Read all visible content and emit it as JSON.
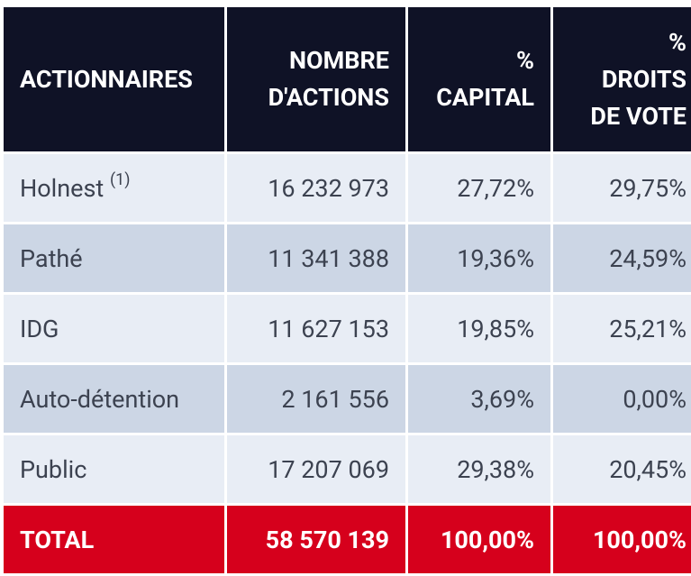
{
  "table": {
    "headers": [
      [
        "ACTIONNAIRES"
      ],
      [
        "NOMBRE",
        "D'ACTIONS"
      ],
      [
        "%",
        "CAPITAL"
      ],
      [
        "%",
        "DROITS",
        "DE VOTE"
      ]
    ],
    "rows": [
      {
        "name": "Holnest",
        "note": "(1)",
        "actions": "16 232 973",
        "capital": "27,72%",
        "votes": "29,75%"
      },
      {
        "name": "Pathé",
        "note": "",
        "actions": "11 341 388",
        "capital": "19,36%",
        "votes": "24,59%"
      },
      {
        "name": "IDG",
        "note": "",
        "actions": "11 627 153",
        "capital": "19,85%",
        "votes": "25,21%"
      },
      {
        "name": "Auto-détention",
        "note": "",
        "actions": "2 161 556",
        "capital": "3,69%",
        "votes": "0,00%"
      },
      {
        "name": "Public",
        "note": "",
        "actions": "17 207 069",
        "capital": "29,38%",
        "votes": "20,45%"
      }
    ],
    "total": {
      "name": "TOTAL",
      "actions": "58 570 139",
      "capital": "100,00%",
      "votes": "100,00%"
    }
  },
  "colors": {
    "header_bg": "#0f1226",
    "row_light": "#e8edf5",
    "row_dark": "#ccd6e5",
    "total_bg": "#d6001c"
  }
}
